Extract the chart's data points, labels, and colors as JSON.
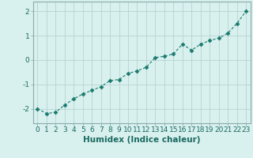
{
  "x": [
    0,
    1,
    2,
    3,
    4,
    5,
    6,
    7,
    8,
    9,
    10,
    11,
    12,
    13,
    14,
    15,
    16,
    17,
    18,
    19,
    20,
    21,
    22,
    23
  ],
  "y": [
    -2.0,
    -2.2,
    -2.15,
    -1.85,
    -1.6,
    -1.4,
    -1.25,
    -1.1,
    -0.85,
    -0.8,
    -0.55,
    -0.45,
    -0.3,
    0.1,
    0.15,
    0.25,
    0.65,
    0.4,
    0.65,
    0.8,
    0.9,
    1.1,
    1.5,
    2.0
  ],
  "line_color": "#1a7a6e",
  "marker": "D",
  "markersize": 2.5,
  "linewidth": 0.8,
  "bg_color": "#d8f0ee",
  "grid_color": "#b0cece",
  "xlabel": "Humidex (Indice chaleur)",
  "xlim": [
    -0.5,
    23.5
  ],
  "ylim": [
    -2.6,
    2.4
  ],
  "yticks": [
    -2,
    -1,
    0,
    1,
    2
  ],
  "xticks": [
    0,
    1,
    2,
    3,
    4,
    5,
    6,
    7,
    8,
    9,
    10,
    11,
    12,
    13,
    14,
    15,
    16,
    17,
    18,
    19,
    20,
    21,
    22,
    23
  ],
  "tick_fontsize": 6.5,
  "xlabel_fontsize": 7.5,
  "tick_color": "#1a6a60",
  "spine_color": "#8aacac"
}
